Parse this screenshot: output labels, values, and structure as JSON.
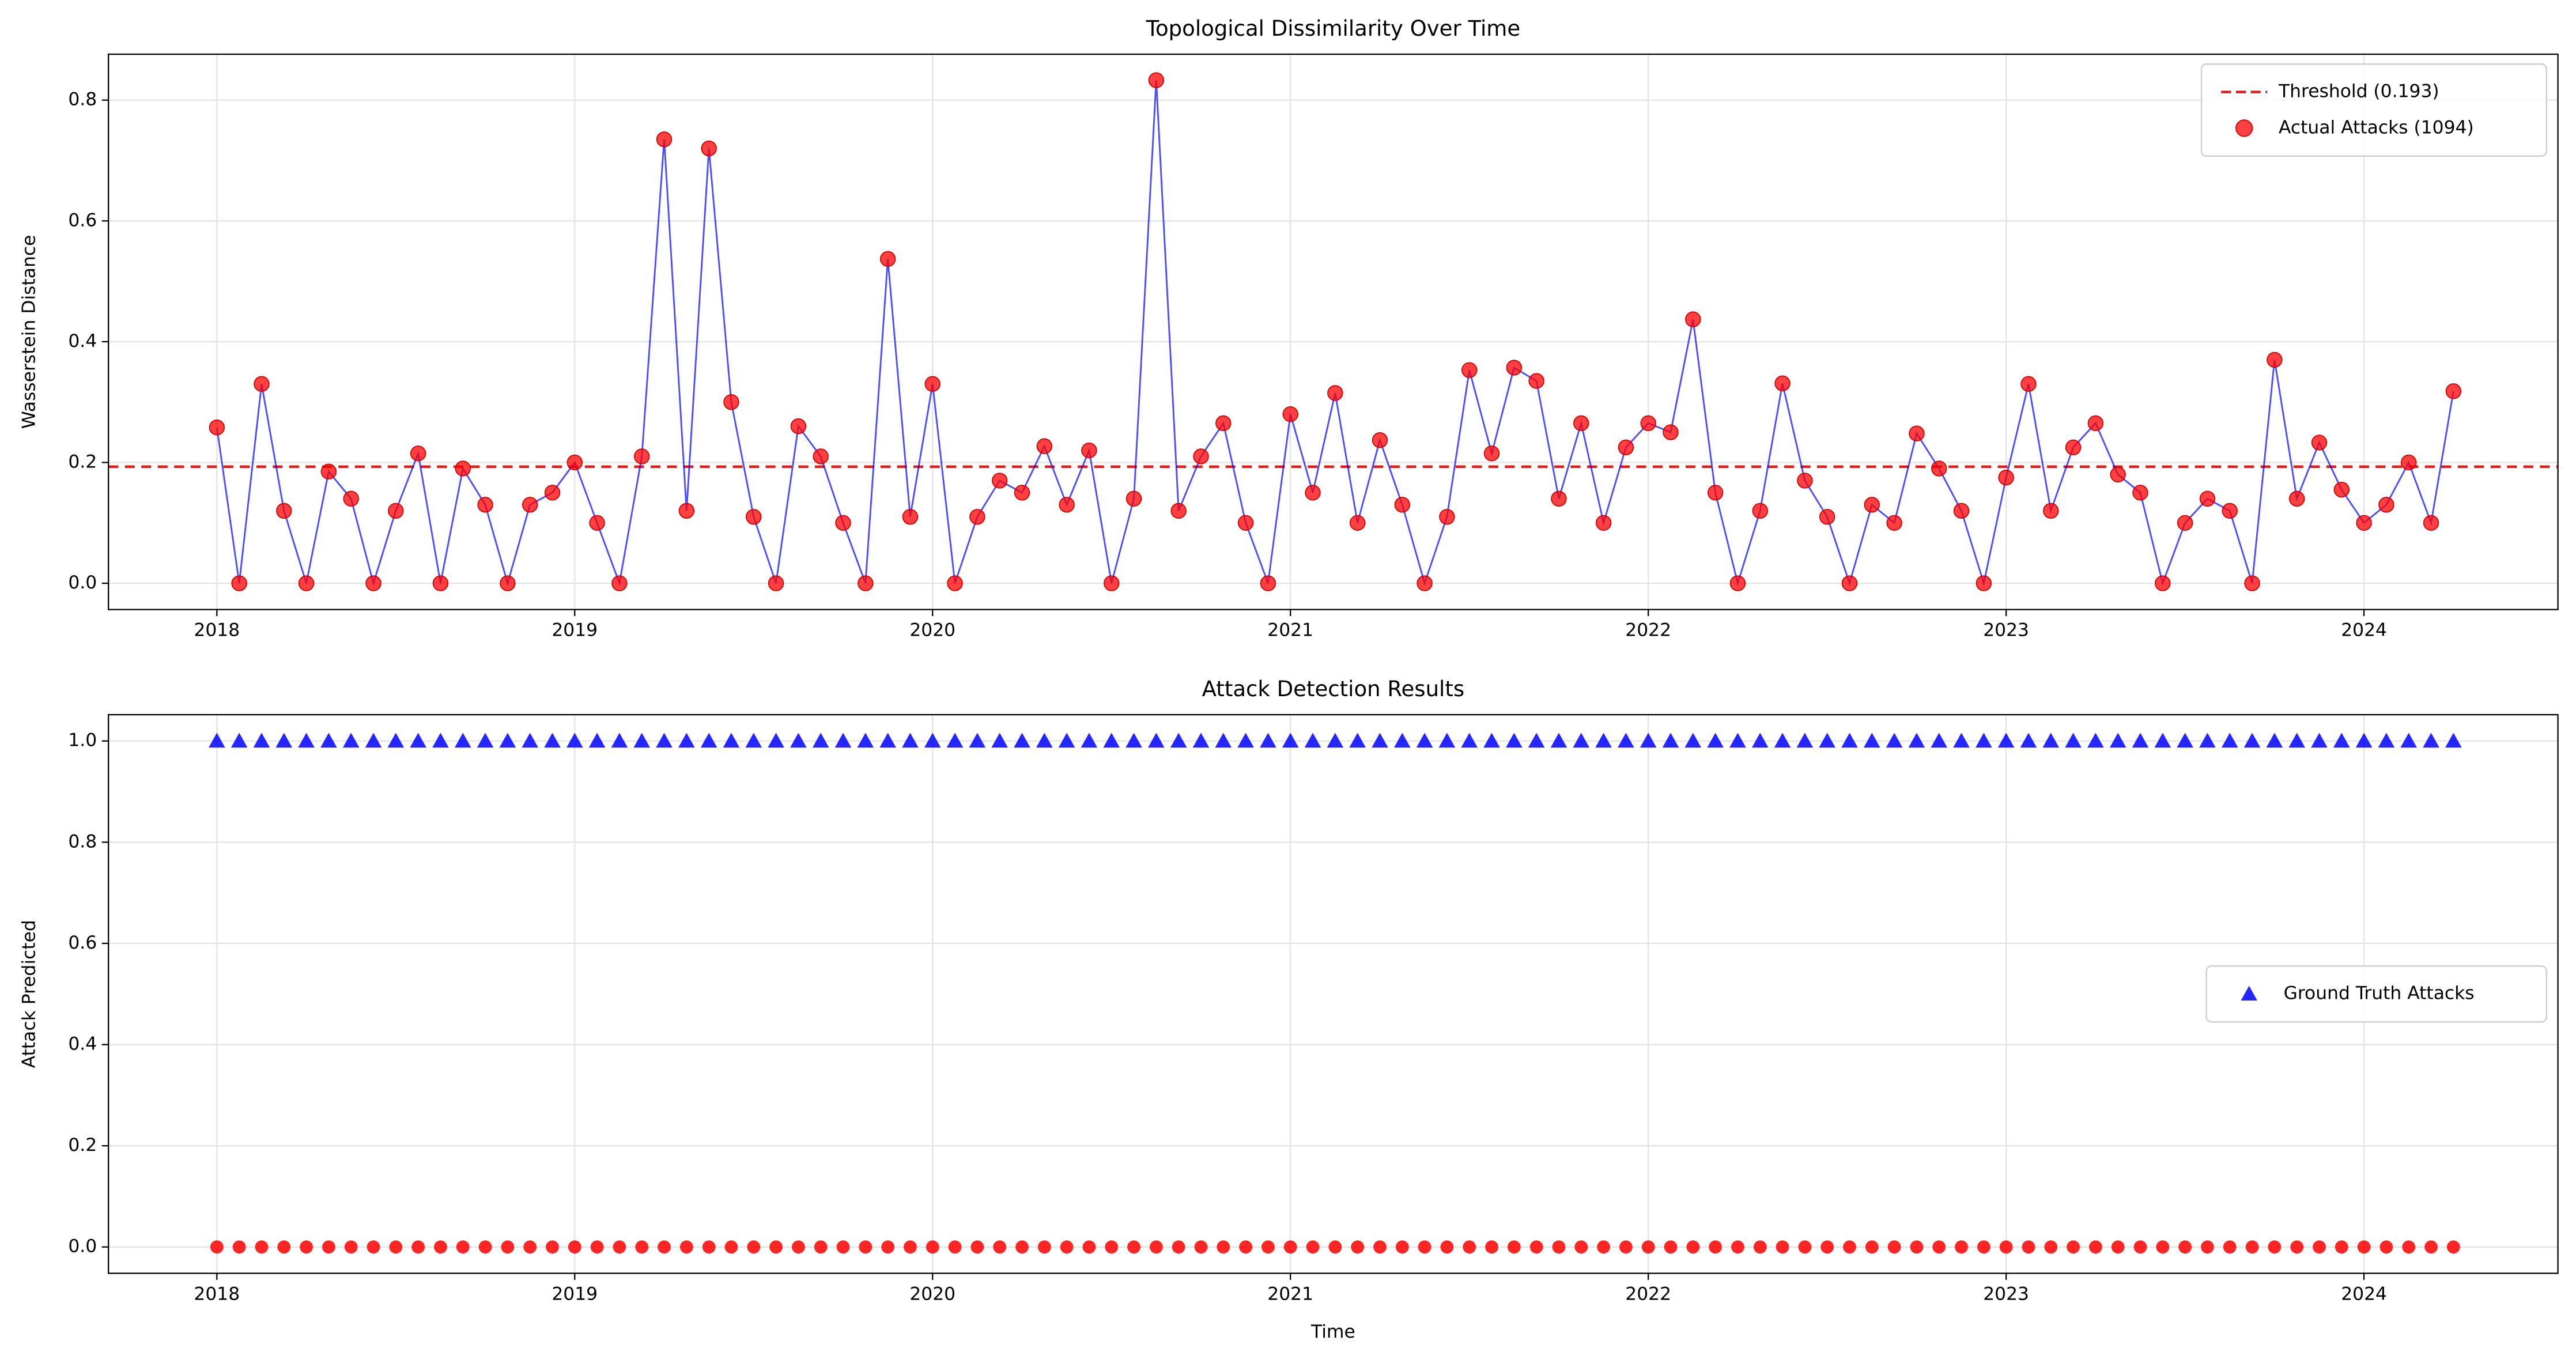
{
  "chart_data": [
    {
      "type": "line",
      "title": "Topological Dissimilarity Over Time",
      "ylabel": "Wasserstein Distance",
      "xlim": [
        2017.697,
        2024.542
      ],
      "xticks": [
        2018,
        2019,
        2020,
        2021,
        2022,
        2023,
        2024
      ],
      "ylim": [
        -0.0435,
        0.876
      ],
      "yticks": [
        {
          "value": 0,
          "label": "0.0"
        },
        0.2,
        0.4,
        0.6,
        0.8
      ],
      "grid": true,
      "legend": "upper right",
      "threshold": {
        "name": "Threshold (0.193)",
        "value": 0.193,
        "color": "#e41a1c"
      },
      "x": [
        2018,
        2018.0625,
        2018.125,
        2018.1875,
        2018.25,
        2018.3125,
        2018.375,
        2018.4375,
        2018.5,
        2018.5625,
        2018.625,
        2018.6875,
        2018.75,
        2018.8125,
        2018.875,
        2018.9375,
        2019,
        2019.0625,
        2019.125,
        2019.1875,
        2019.25,
        2019.3125,
        2019.375,
        2019.4375,
        2019.5,
        2019.5625,
        2019.625,
        2019.6875,
        2019.75,
        2019.8125,
        2019.875,
        2019.9375,
        2020,
        2020.0625,
        2020.125,
        2020.1875,
        2020.25,
        2020.3125,
        2020.375,
        2020.4375,
        2020.5,
        2020.5625,
        2020.625,
        2020.6875,
        2020.75,
        2020.8125,
        2020.875,
        2020.9375,
        2021,
        2021.0625,
        2021.125,
        2021.1875,
        2021.25,
        2021.3125,
        2021.375,
        2021.4375,
        2021.5,
        2021.5625,
        2021.625,
        2021.6875,
        2021.75,
        2021.8125,
        2021.875,
        2021.9375,
        2022,
        2022.0625,
        2022.125,
        2022.1875,
        2022.25,
        2022.3125,
        2022.375,
        2022.4375,
        2022.5,
        2022.5625,
        2022.625,
        2022.6875,
        2022.75,
        2022.8125,
        2022.875,
        2022.9375,
        2023,
        2023.0625,
        2023.125,
        2023.1875,
        2023.25,
        2023.3125,
        2023.375,
        2023.4375,
        2023.5,
        2023.5625,
        2023.625,
        2023.6875,
        2023.75,
        2023.8125,
        2023.875,
        2023.9375,
        2024,
        2024.0625,
        2024.125,
        2024.1875,
        2024.25
      ],
      "series": [
        {
          "name": "Actual Attacks (1094)",
          "color": "#ff0000",
          "line_color": "#0000ff",
          "values": [
            0.258,
            0,
            0.33,
            0.12,
            0,
            0.185,
            0.14,
            0,
            0.12,
            0.215,
            0,
            0.19,
            0.13,
            0,
            0.13,
            0.15,
            0.2,
            0.1,
            0,
            0.21,
            0.735,
            0.12,
            0.72,
            0.3,
            0.11,
            0,
            0.26,
            0.21,
            0.1,
            0,
            0.537,
            0.11,
            0.33,
            0,
            0.11,
            0.17,
            0.15,
            0.227,
            0.13,
            0.22,
            0,
            0.14,
            0.833,
            0.12,
            0.21,
            0.265,
            0.1,
            0,
            0.28,
            0.15,
            0.315,
            0.1,
            0.237,
            0.13,
            0,
            0.11,
            0.353,
            0.215,
            0.357,
            0.335,
            0.14,
            0.265,
            0.1,
            0.225,
            0.265,
            0.25,
            0.437,
            0.15,
            0,
            0.12,
            0.331,
            0.17,
            0.11,
            0,
            0.13,
            0.1,
            0.248,
            0.19,
            0.12,
            0,
            0.175,
            0.33,
            0.12,
            0.225,
            0.265,
            0.18,
            0.15,
            0,
            0.1,
            0.14,
            0.12,
            0,
            0.37,
            0.14,
            0.233,
            0.155,
            0.1,
            0.13,
            0.2,
            0.1,
            0.318
          ]
        }
      ]
    },
    {
      "type": "scatter",
      "title": "Attack Detection Results",
      "xlabel": "Time",
      "ylabel": "Attack Predicted",
      "xlim": [
        2017.697,
        2024.542
      ],
      "xticks": [
        2018,
        2019,
        2020,
        2021,
        2022,
        2023,
        2024
      ],
      "ylim": [
        -0.052,
        1.052
      ],
      "yticks": [
        {
          "value": 0,
          "label": "0.0"
        },
        0.2,
        0.4,
        0.6,
        0.8,
        {
          "value": 1,
          "label": "1.0"
        }
      ],
      "grid": true,
      "legend": "center right",
      "x": [
        2018,
        2018.0625,
        2018.125,
        2018.1875,
        2018.25,
        2018.3125,
        2018.375,
        2018.4375,
        2018.5,
        2018.5625,
        2018.625,
        2018.6875,
        2018.75,
        2018.8125,
        2018.875,
        2018.9375,
        2019,
        2019.0625,
        2019.125,
        2019.1875,
        2019.25,
        2019.3125,
        2019.375,
        2019.4375,
        2019.5,
        2019.5625,
        2019.625,
        2019.6875,
        2019.75,
        2019.8125,
        2019.875,
        2019.9375,
        2020,
        2020.0625,
        2020.125,
        2020.1875,
        2020.25,
        2020.3125,
        2020.375,
        2020.4375,
        2020.5,
        2020.5625,
        2020.625,
        2020.6875,
        2020.75,
        2020.8125,
        2020.875,
        2020.9375,
        2021,
        2021.0625,
        2021.125,
        2021.1875,
        2021.25,
        2021.3125,
        2021.375,
        2021.4375,
        2021.5,
        2021.5625,
        2021.625,
        2021.6875,
        2021.75,
        2021.8125,
        2021.875,
        2021.9375,
        2022,
        2022.0625,
        2022.125,
        2022.1875,
        2022.25,
        2022.3125,
        2022.375,
        2022.4375,
        2022.5,
        2022.5625,
        2022.625,
        2022.6875,
        2022.75,
        2022.8125,
        2022.875,
        2022.9375,
        2023,
        2023.0625,
        2023.125,
        2023.1875,
        2023.25,
        2023.3125,
        2023.375,
        2023.4375,
        2023.5,
        2023.5625,
        2023.625,
        2023.6875,
        2023.75,
        2023.8125,
        2023.875,
        2023.9375,
        2024,
        2024.0625,
        2024.125,
        2024.1875,
        2024.25
      ],
      "series": [
        {
          "name": "Ground Truth Attacks",
          "color": "#0000ff",
          "marker": "triangle",
          "values": [
            1,
            1,
            1,
            1,
            1,
            1,
            1,
            1,
            1,
            1,
            1,
            1,
            1,
            1,
            1,
            1,
            1,
            1,
            1,
            1,
            1,
            1,
            1,
            1,
            1,
            1,
            1,
            1,
            1,
            1,
            1,
            1,
            1,
            1,
            1,
            1,
            1,
            1,
            1,
            1,
            1,
            1,
            1,
            1,
            1,
            1,
            1,
            1,
            1,
            1,
            1,
            1,
            1,
            1,
            1,
            1,
            1,
            1,
            1,
            1,
            1,
            1,
            1,
            1,
            1,
            1,
            1,
            1,
            1,
            1,
            1,
            1,
            1,
            1,
            1,
            1,
            1,
            1,
            1,
            1,
            1,
            1,
            1,
            1,
            1,
            1,
            1,
            1,
            1,
            1,
            1,
            1,
            1,
            1,
            1,
            1,
            1,
            1,
            1,
            1,
            1
          ]
        },
        {
          "color": "#ff0000",
          "marker": "circle",
          "values": [
            0,
            0,
            0,
            0,
            0,
            0,
            0,
            0,
            0,
            0,
            0,
            0,
            0,
            0,
            0,
            0,
            0,
            0,
            0,
            0,
            0,
            0,
            0,
            0,
            0,
            0,
            0,
            0,
            0,
            0,
            0,
            0,
            0,
            0,
            0,
            0,
            0,
            0,
            0,
            0,
            0,
            0,
            0,
            0,
            0,
            0,
            0,
            0,
            0,
            0,
            0,
            0,
            0,
            0,
            0,
            0,
            0,
            0,
            0,
            0,
            0,
            0,
            0,
            0,
            0,
            0,
            0,
            0,
            0,
            0,
            0,
            0,
            0,
            0,
            0,
            0,
            0,
            0,
            0,
            0,
            0,
            0,
            0,
            0,
            0,
            0,
            0,
            0,
            0,
            0,
            0,
            0,
            0,
            0,
            0,
            0,
            0,
            0,
            0,
            0,
            0
          ]
        }
      ]
    }
  ]
}
